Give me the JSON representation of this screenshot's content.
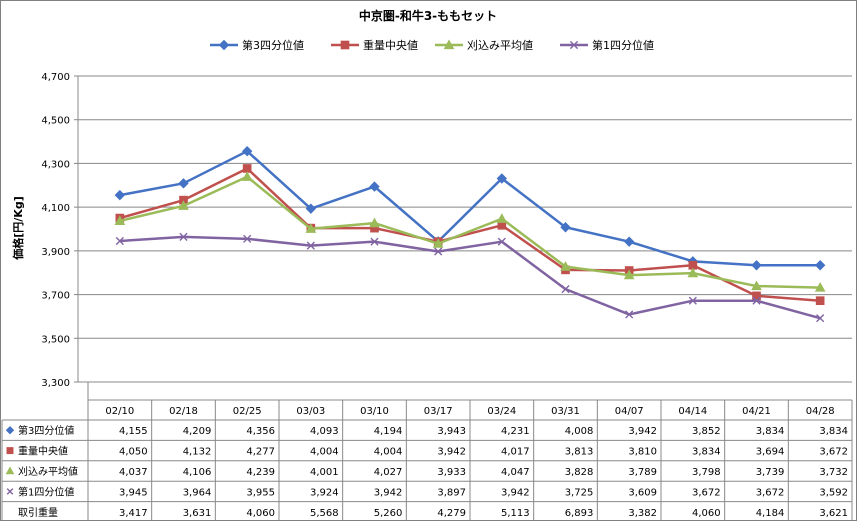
{
  "chart_data": {
    "type": "line",
    "title": "中京圏-和牛3-ももセット",
    "ylabel": "価格[円/Kg]",
    "ylim": [
      3300,
      4700
    ],
    "yticks": [
      3300,
      3500,
      3700,
      3900,
      4100,
      4300,
      4500,
      4700
    ],
    "ytick_labels": [
      "3,300",
      "3,500",
      "3,700",
      "3,900",
      "4,100",
      "4,300",
      "4,500",
      "4,700"
    ],
    "grid": "horizontal",
    "legend_position": "top",
    "categories": [
      "02/10",
      "02/18",
      "02/25",
      "03/03",
      "03/10",
      "03/17",
      "03/24",
      "03/31",
      "04/07",
      "04/14",
      "04/21",
      "04/28"
    ],
    "series": [
      {
        "name": "第3四分位値",
        "color": "#4472C4",
        "marker": "diamond",
        "values": [
          4155,
          4209,
          4356,
          4093,
          4194,
          3943,
          4231,
          4008,
          3942,
          3852,
          3834,
          3834
        ],
        "labels": [
          "4,155",
          "4,209",
          "4,356",
          "4,093",
          "4,194",
          "3,943",
          "4,231",
          "4,008",
          "3,942",
          "3,852",
          "3,834",
          "3,834"
        ]
      },
      {
        "name": "重量中央値",
        "color": "#C0504D",
        "marker": "square",
        "values": [
          4050,
          4132,
          4277,
          4004,
          4004,
          3942,
          4017,
          3813,
          3810,
          3834,
          3694,
          3672
        ],
        "labels": [
          "4,050",
          "4,132",
          "4,277",
          "4,004",
          "4,004",
          "3,942",
          "4,017",
          "3,813",
          "3,810",
          "3,834",
          "3,694",
          "3,672"
        ]
      },
      {
        "name": "刈込み平均値",
        "color": "#9BBB59",
        "marker": "triangle",
        "values": [
          4037,
          4106,
          4239,
          4001,
          4027,
          3933,
          4047,
          3828,
          3789,
          3798,
          3739,
          3732
        ],
        "labels": [
          "4,037",
          "4,106",
          "4,239",
          "4,001",
          "4,027",
          "3,933",
          "4,047",
          "3,828",
          "3,789",
          "3,798",
          "3,739",
          "3,732"
        ]
      },
      {
        "name": "第1四分位値",
        "color": "#8064A2",
        "marker": "x",
        "values": [
          3945,
          3964,
          3955,
          3924,
          3942,
          3897,
          3942,
          3725,
          3609,
          3672,
          3672,
          3592
        ],
        "labels": [
          "3,945",
          "3,964",
          "3,955",
          "3,924",
          "3,942",
          "3,897",
          "3,942",
          "3,725",
          "3,609",
          "3,672",
          "3,672",
          "3,592"
        ]
      }
    ],
    "table_extra_row": {
      "name": "取引重量",
      "values": [
        3417,
        3631,
        4060,
        5568,
        5260,
        4279,
        5113,
        6893,
        3382,
        4060,
        4184,
        3621
      ],
      "labels": [
        "3,417",
        "3,631",
        "4,060",
        "5,568",
        "5,260",
        "4,279",
        "5,113",
        "6,893",
        "3,382",
        "4,060",
        "4,184",
        "3,621"
      ]
    }
  }
}
